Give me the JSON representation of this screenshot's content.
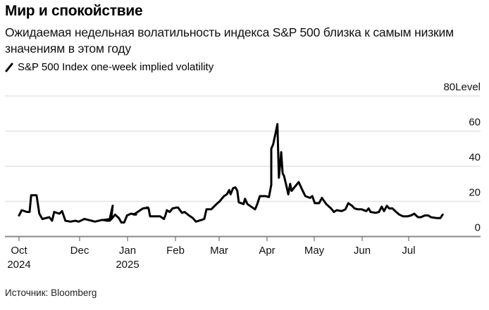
{
  "header": {
    "title": "Мир и спокойствие",
    "subtitle": "Ожидаемая недельная волатильность индекса S&P 500 близка к самым низким значениям в этом году",
    "legend_label": "S&P 500 Index one-week implied volatility"
  },
  "footer": {
    "source": "Источник: Bloomberg"
  },
  "chart_data": {
    "type": "line",
    "title": "Мир и спокойствие",
    "subtitle": "Ожидаемая недельная волатильность индекса S&P 500 близка к самым низким значениям в этом году",
    "xlabel": "",
    "ylabel": "Level",
    "ylim": [
      0,
      80
    ],
    "yticks": [
      {
        "value": 80,
        "label": "80Level"
      },
      {
        "value": 60,
        "label": "60"
      },
      {
        "value": 40,
        "label": "40"
      },
      {
        "value": 20,
        "label": "20"
      },
      {
        "value": 0,
        "label": "0"
      }
    ],
    "xticks": [
      {
        "month": 0,
        "label": "Oct",
        "sublabel": "2024"
      },
      {
        "month": 2,
        "label": "Dec",
        "sublabel": ""
      },
      {
        "month": 3,
        "label": "Jan",
        "sublabel": "2025"
      },
      {
        "month": 4,
        "label": "Feb",
        "sublabel": ""
      },
      {
        "month": 5,
        "label": "Mar",
        "sublabel": ""
      },
      {
        "month": 6,
        "label": "Apr",
        "sublabel": ""
      },
      {
        "month": 7,
        "label": "May",
        "sublabel": ""
      },
      {
        "month": 8,
        "label": "Jun",
        "sublabel": ""
      },
      {
        "month": 9,
        "label": "Jul",
        "sublabel": ""
      }
    ],
    "x_unit": "months since 2024-10-01",
    "grid": true,
    "legend_position": "top-left",
    "series": [
      {
        "name": "S&P 500 Index one-week implied volatility",
        "color": "#000000",
        "points": [
          [
            0.0,
            12
          ],
          [
            0.09,
            15
          ],
          [
            0.26,
            14
          ],
          [
            0.35,
            14
          ],
          [
            0.4,
            23.5
          ],
          [
            0.58,
            23.5
          ],
          [
            0.67,
            13
          ],
          [
            0.77,
            10
          ],
          [
            1.0,
            11
          ],
          [
            1.09,
            9
          ],
          [
            1.16,
            14
          ],
          [
            1.33,
            13
          ],
          [
            1.42,
            14.5
          ],
          [
            1.53,
            9
          ],
          [
            1.7,
            8.5
          ],
          [
            1.86,
            9
          ],
          [
            1.97,
            8.5
          ],
          [
            2.1,
            10
          ],
          [
            2.25,
            9
          ],
          [
            2.32,
            8.5
          ],
          [
            2.47,
            9.5
          ],
          [
            2.59,
            9
          ],
          [
            2.56,
            9
          ],
          [
            2.51,
            9.5
          ],
          [
            2.66,
            10
          ],
          [
            2.69,
            17.5
          ],
          [
            2.62,
            9
          ],
          [
            2.63,
            9
          ],
          [
            2.68,
            10.5
          ],
          [
            2.74,
            12.5
          ],
          [
            2.82,
            10.5
          ],
          [
            2.87,
            8
          ],
          [
            2.93,
            8
          ],
          [
            2.99,
            12
          ],
          [
            3.07,
            13
          ],
          [
            3.18,
            12.5
          ],
          [
            3.13,
            12.5
          ],
          [
            3.32,
            16
          ],
          [
            3.43,
            16.5
          ],
          [
            3.4,
            16.5
          ],
          [
            3.44,
            16
          ],
          [
            3.47,
            11.5
          ],
          [
            3.68,
            11.5
          ],
          [
            3.76,
            10
          ],
          [
            3.79,
            12
          ],
          [
            3.82,
            15
          ],
          [
            3.88,
            14
          ],
          [
            3.94,
            16
          ],
          [
            4.02,
            16.5
          ],
          [
            4.06,
            16.5
          ],
          [
            4.15,
            13.5
          ],
          [
            4.21,
            14
          ],
          [
            4.31,
            12
          ],
          [
            4.4,
            10.5
          ],
          [
            4.47,
            8.5
          ],
          [
            4.6,
            9.5
          ],
          [
            4.66,
            10
          ],
          [
            4.71,
            15.5
          ],
          [
            4.82,
            15.5
          ],
          [
            4.94,
            18.5
          ],
          [
            5.01,
            20
          ],
          [
            5.1,
            23
          ],
          [
            5.16,
            24
          ],
          [
            5.21,
            26.5
          ],
          [
            5.24,
            24
          ],
          [
            5.29,
            27.5
          ],
          [
            5.34,
            28
          ],
          [
            5.38,
            26
          ],
          [
            5.41,
            19.5
          ],
          [
            5.51,
            18.5
          ],
          [
            5.54,
            21.5
          ],
          [
            5.59,
            18.5
          ],
          [
            5.75,
            15.5
          ],
          [
            5.79,
            18
          ],
          [
            5.85,
            23
          ],
          [
            5.97,
            23
          ],
          [
            6.04,
            22.5
          ],
          [
            6.09,
            29.5
          ],
          [
            6.09,
            50
          ],
          [
            6.13,
            52.5
          ],
          [
            6.19,
            60
          ],
          [
            6.22,
            64
          ],
          [
            6.25,
            33.5
          ],
          [
            6.3,
            48
          ],
          [
            6.33,
            36
          ],
          [
            6.36,
            34.5
          ],
          [
            6.4,
            30
          ],
          [
            6.45,
            24
          ],
          [
            6.49,
            30
          ],
          [
            6.52,
            26
          ],
          [
            6.61,
            29
          ],
          [
            6.67,
            31
          ],
          [
            6.73,
            27.5
          ],
          [
            6.81,
            23
          ],
          [
            6.91,
            22
          ],
          [
            6.96,
            23
          ],
          [
            7.01,
            19
          ],
          [
            7.1,
            19
          ],
          [
            7.16,
            22
          ],
          [
            7.25,
            18.5
          ],
          [
            7.35,
            16
          ],
          [
            7.41,
            14
          ],
          [
            7.47,
            15
          ],
          [
            7.57,
            14.5
          ],
          [
            7.65,
            15.5
          ],
          [
            7.71,
            19
          ],
          [
            7.79,
            17.5
          ],
          [
            7.84,
            16
          ],
          [
            7.91,
            15.5
          ],
          [
            7.99,
            15.5
          ],
          [
            8.09,
            14.5
          ],
          [
            8.14,
            16
          ],
          [
            8.18,
            14
          ],
          [
            8.29,
            13.5
          ],
          [
            8.36,
            14
          ],
          [
            8.42,
            17
          ],
          [
            8.47,
            14.5
          ],
          [
            8.53,
            17.5
          ],
          [
            8.58,
            16
          ],
          [
            8.65,
            16
          ],
          [
            8.73,
            14
          ],
          [
            8.8,
            12.5
          ],
          [
            8.88,
            11.5
          ],
          [
            8.97,
            11.5
          ],
          [
            9.05,
            12
          ],
          [
            9.12,
            13
          ],
          [
            9.2,
            11
          ],
          [
            9.26,
            11
          ],
          [
            9.35,
            12
          ],
          [
            9.42,
            12
          ],
          [
            9.48,
            11
          ],
          [
            9.61,
            10.5
          ],
          [
            9.68,
            10.5
          ],
          [
            9.73,
            12.5
          ]
        ]
      }
    ]
  }
}
